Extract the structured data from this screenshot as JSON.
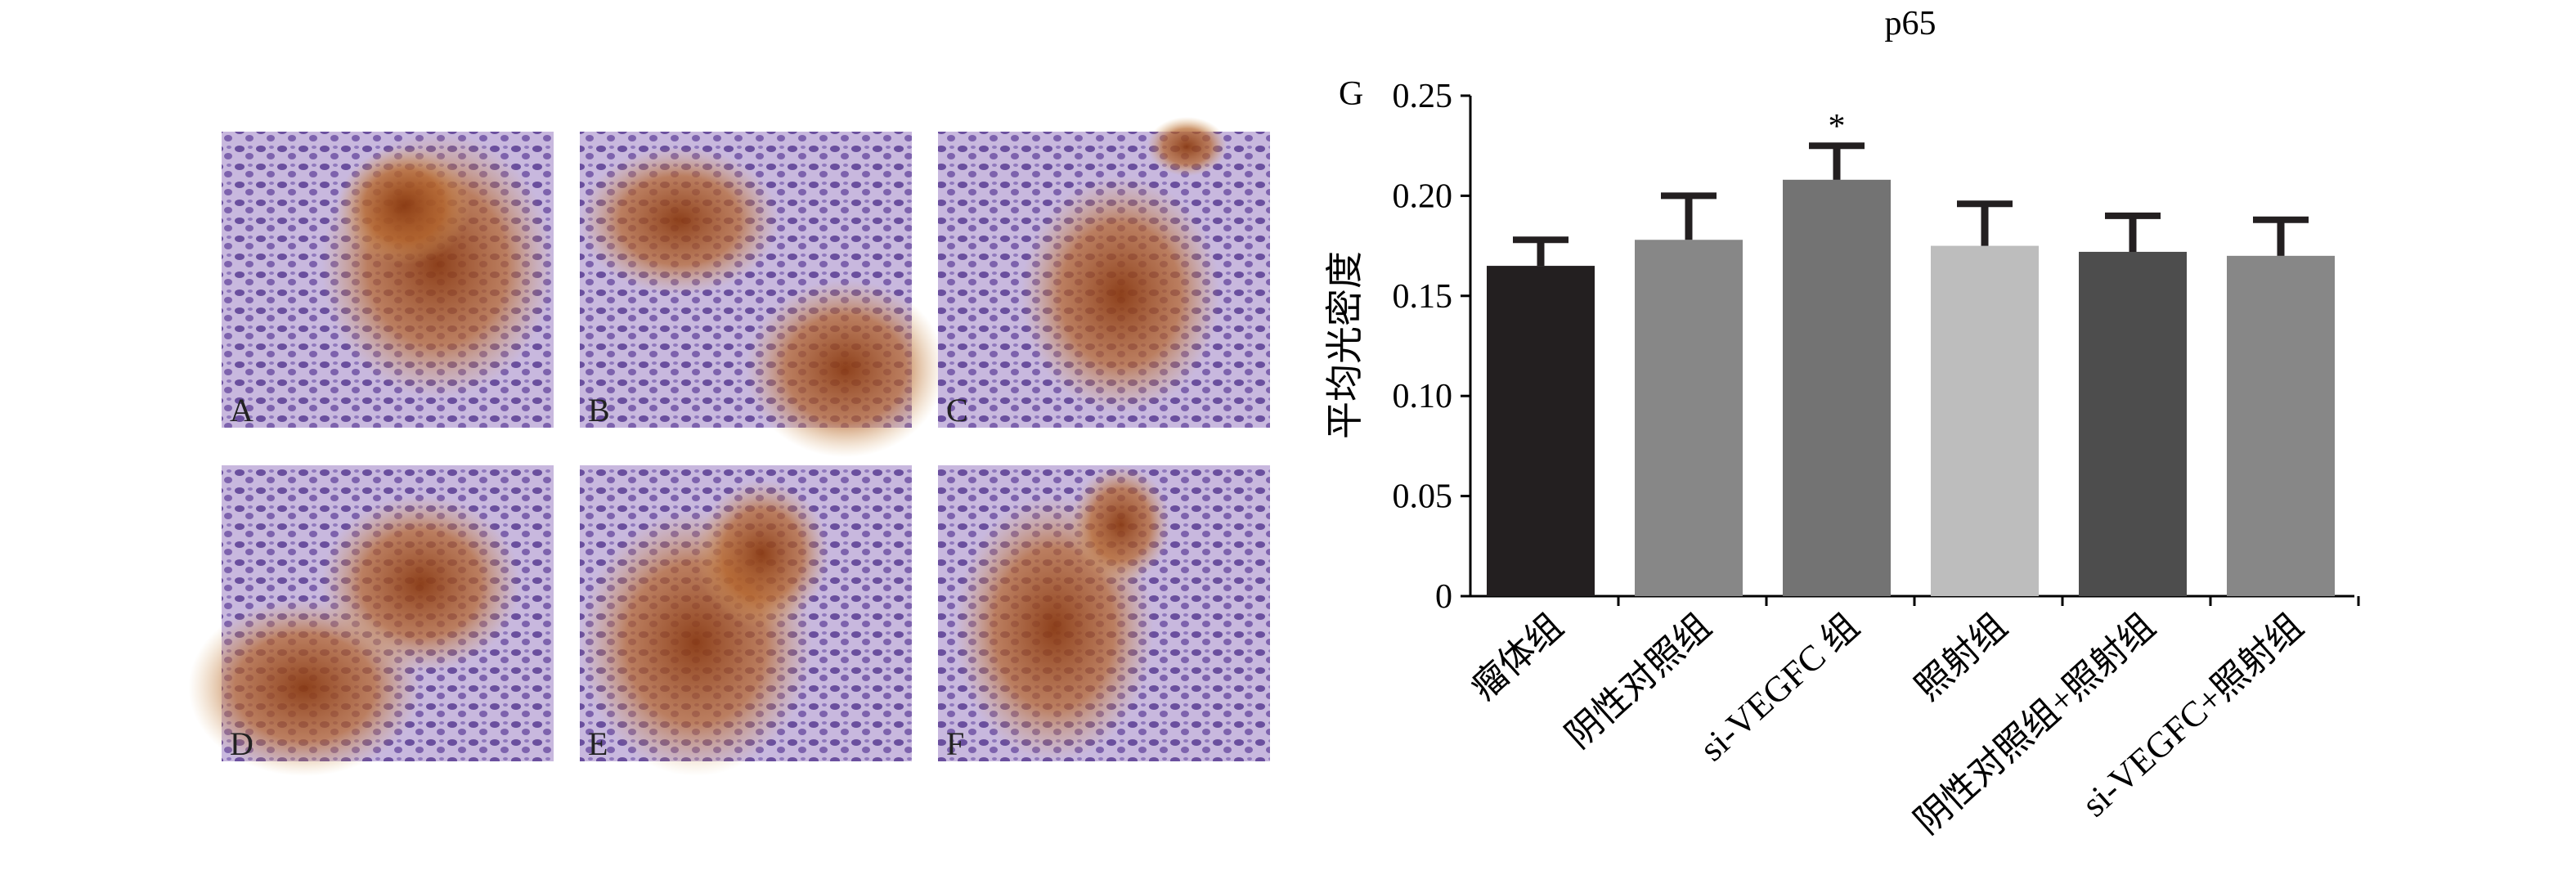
{
  "panels": [
    {
      "label": "A"
    },
    {
      "label": "B"
    },
    {
      "label": "C"
    },
    {
      "label": "D"
    },
    {
      "label": "E"
    },
    {
      "label": "F"
    }
  ],
  "chart_data": {
    "type": "bar",
    "title": "p65",
    "panel_label": "G",
    "y_label": "平均光密度",
    "categories": [
      "瘤体组",
      "阴性对照组",
      "si-VEGFC 组",
      "照射组",
      "阴性对照组+照射组",
      "si-VEGFC+照射组"
    ],
    "values": [
      0.165,
      0.178,
      0.208,
      0.175,
      0.172,
      0.17
    ],
    "errors": [
      0.013,
      0.022,
      0.017,
      0.021,
      0.018,
      0.018
    ],
    "value_annotations": [
      null,
      null,
      "*",
      null,
      null,
      null
    ],
    "colors": [
      "#231f20",
      "#878787",
      "#737373",
      "#bdbdbd",
      "#4d4d4d",
      "#878787"
    ],
    "ylim": [
      0,
      0.25
    ],
    "yticks": [
      0,
      0.05,
      {
        "value": 0.1,
        "label": "0.10"
      },
      0.15,
      {
        "value": 0.2,
        "label": "0.20"
      },
      0.25
    ]
  }
}
